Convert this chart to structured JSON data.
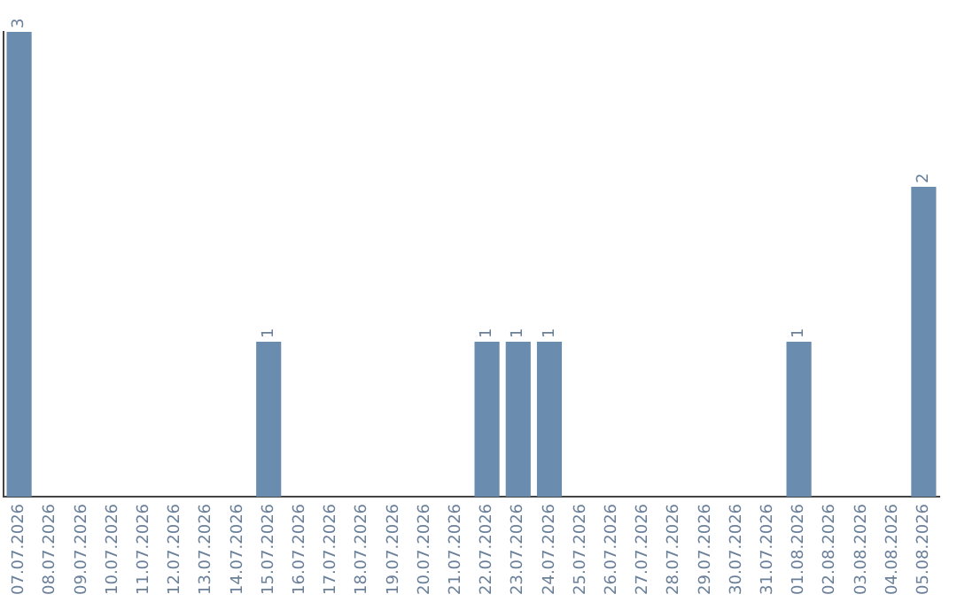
{
  "chart_data": {
    "type": "bar",
    "categories": [
      "07.07.2026",
      "08.07.2026",
      "09.07.2026",
      "10.07.2026",
      "11.07.2026",
      "12.07.2026",
      "13.07.2026",
      "14.07.2026",
      "15.07.2026",
      "16.07.2026",
      "17.07.2026",
      "18.07.2026",
      "19.07.2026",
      "20.07.2026",
      "21.07.2026",
      "22.07.2026",
      "23.07.2026",
      "24.07.2026",
      "25.07.2026",
      "26.07.2026",
      "27.07.2026",
      "28.07.2026",
      "29.07.2026",
      "30.07.2026",
      "31.07.2026",
      "01.08.2026",
      "02.08.2026",
      "03.08.2026",
      "04.08.2026",
      "05.08.2026"
    ],
    "values": [
      3,
      0,
      0,
      0,
      0,
      0,
      0,
      0,
      1,
      0,
      0,
      0,
      0,
      0,
      0,
      1,
      1,
      1,
      0,
      0,
      0,
      0,
      0,
      0,
      0,
      1,
      0,
      0,
      0,
      2
    ],
    "value_labels": [
      "3",
      null,
      null,
      null,
      null,
      null,
      null,
      null,
      "1",
      null,
      null,
      null,
      null,
      null,
      null,
      "1",
      "1",
      "1",
      null,
      null,
      null,
      null,
      null,
      null,
      null,
      "1",
      null,
      null,
      null,
      "2"
    ],
    "color": "#6a8caf",
    "tick_labels": "x",
    "grid": false,
    "legend": false
  }
}
